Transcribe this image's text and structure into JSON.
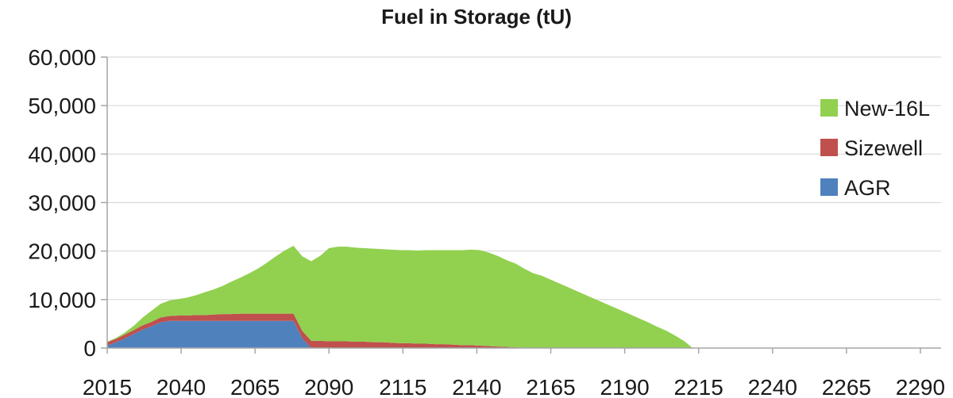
{
  "chart_data": {
    "type": "area",
    "stacked": true,
    "title": "Fuel in Storage (tU)",
    "xlabel": "",
    "ylabel": "",
    "xlim": [
      2015,
      2297
    ],
    "ylim": [
      0,
      60000
    ],
    "x_ticks": [
      2015,
      2040,
      2065,
      2090,
      2115,
      2140,
      2165,
      2190,
      2215,
      2240,
      2265,
      2290
    ],
    "x_tick_labels": [
      "2015",
      "2040",
      "2065",
      "2090",
      "2115",
      "2140",
      "2165",
      "2190",
      "2215",
      "2240",
      "2265",
      "2290"
    ],
    "y_ticks": [
      0,
      10000,
      20000,
      30000,
      40000,
      50000,
      60000
    ],
    "y_tick_labels": [
      "0",
      "10,000",
      "20,000",
      "30,000",
      "40,000",
      "50,000",
      "60,000"
    ],
    "grid": "horizontal",
    "legend_position": "right",
    "legend_order": [
      "New-16L",
      "Sizewell",
      "AGR"
    ],
    "x": [
      2015,
      2018,
      2021,
      2024,
      2027,
      2030,
      2033,
      2036,
      2039,
      2042,
      2045,
      2048,
      2051,
      2054,
      2057,
      2060,
      2063,
      2066,
      2069,
      2072,
      2075,
      2078,
      2081,
      2084,
      2087,
      2090,
      2093,
      2096,
      2099,
      2102,
      2105,
      2108,
      2111,
      2114,
      2117,
      2120,
      2123,
      2126,
      2129,
      2132,
      2135,
      2138,
      2141,
      2144,
      2147,
      2150,
      2153,
      2156,
      2159,
      2162,
      2165,
      2168,
      2171,
      2174,
      2177,
      2180,
      2183,
      2186,
      2189,
      2192,
      2195,
      2198,
      2201,
      2204,
      2207,
      2210,
      2213,
      2297
    ],
    "series": [
      {
        "name": "AGR",
        "color": "#4f81bd",
        "values": [
          500,
          1200,
          2000,
          2900,
          3800,
          4500,
          5300,
          5600,
          5600,
          5600,
          5600,
          5600,
          5600,
          5600,
          5600,
          5600,
          5600,
          5600,
          5600,
          5600,
          5600,
          5600,
          2000,
          0,
          0,
          0,
          0,
          0,
          0,
          0,
          0,
          0,
          0,
          0,
          0,
          0,
          0,
          0,
          0,
          0,
          0,
          0,
          0,
          0,
          0,
          0,
          0,
          0,
          0,
          0,
          0,
          0,
          0,
          0,
          0,
          0,
          0,
          0,
          0,
          0,
          0,
          0,
          0,
          0,
          0,
          0,
          0,
          0
        ]
      },
      {
        "name": "Sizewell",
        "color": "#c0504d",
        "values": [
          700,
          700,
          800,
          800,
          900,
          900,
          1000,
          1000,
          1100,
          1100,
          1200,
          1200,
          1300,
          1400,
          1400,
          1500,
          1500,
          1500,
          1500,
          1500,
          1500,
          1500,
          1500,
          1500,
          1500,
          1400,
          1400,
          1400,
          1300,
          1300,
          1200,
          1200,
          1100,
          1000,
          1000,
          900,
          900,
          800,
          800,
          700,
          600,
          600,
          500,
          400,
          300,
          250,
          150,
          100,
          50,
          0,
          0,
          0,
          0,
          0,
          0,
          0,
          0,
          0,
          0,
          0,
          0,
          0,
          0,
          0,
          0,
          0,
          0,
          0
        ]
      },
      {
        "name": "New-16L",
        "color": "#92d050",
        "values": [
          100,
          200,
          400,
          900,
          1600,
          2300,
          2800,
          3200,
          3400,
          3700,
          4100,
          4700,
          5200,
          5800,
          6700,
          7400,
          8300,
          9300,
          10500,
          11800,
          13000,
          14000,
          15400,
          16400,
          17500,
          19200,
          19500,
          19500,
          19400,
          19300,
          19300,
          19200,
          19200,
          19200,
          19200,
          19200,
          19300,
          19400,
          19400,
          19500,
          19600,
          19700,
          19700,
          19300,
          18700,
          17900,
          17300,
          16300,
          15400,
          14900,
          14100,
          13300,
          12500,
          11700,
          10900,
          10100,
          9300,
          8500,
          7700,
          6900,
          6100,
          5300,
          4400,
          3600,
          2600,
          1500,
          0,
          0
        ]
      }
    ]
  }
}
